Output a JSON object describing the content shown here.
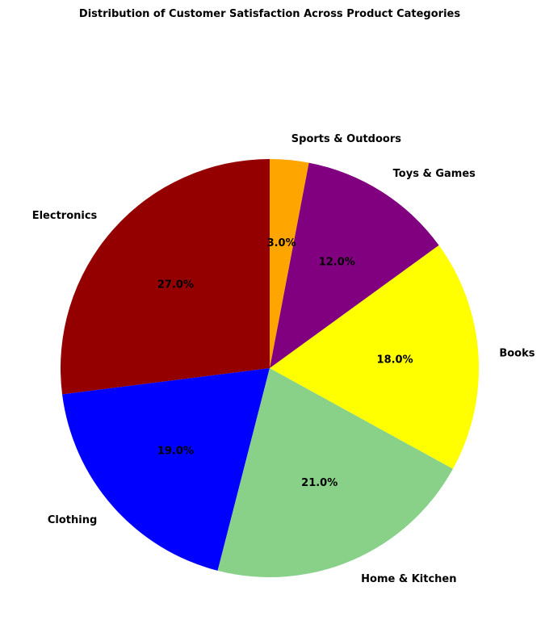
{
  "chart_data": {
    "type": "pie",
    "title": "Distribution of Customer Satisfaction Across Product Categories",
    "categories": [
      "Electronics",
      "Clothing",
      "Home & Kitchen",
      "Books",
      "Toys & Games",
      "Sports & Outdoors"
    ],
    "values": [
      27.0,
      19.0,
      21.0,
      18.0,
      12.0,
      3.0
    ],
    "percent_labels": [
      "27.0%",
      "19.0%",
      "21.0%",
      "18.0%",
      "12.0%",
      "3.0%"
    ],
    "colors": [
      "#940000",
      "#0000ff",
      "#89d189",
      "#ffff00",
      "#800080",
      "#ffa500"
    ],
    "start_angle_deg": 90,
    "direction": "counterclockwise",
    "legend": "none"
  }
}
